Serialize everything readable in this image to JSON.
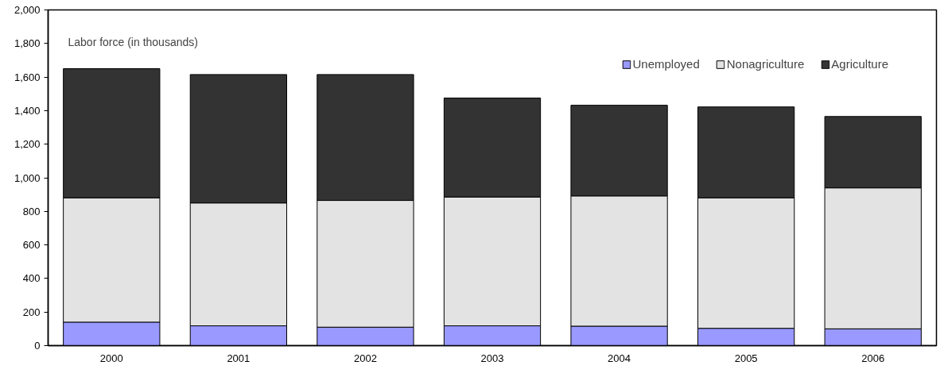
{
  "chart_data": {
    "type": "bar",
    "stacked": true,
    "annotations": [
      "Labor force (in thousands)"
    ],
    "categories": [
      "2000",
      "2001",
      "2002",
      "2003",
      "2004",
      "2005",
      "2006"
    ],
    "series": [
      {
        "name": "Unemployed",
        "color": "#9999ff",
        "values": [
          140,
          118,
          110,
          118,
          116,
          103,
          100
        ]
      },
      {
        "name": "Nonagriculture",
        "color": "#e3e3e3",
        "values": [
          740,
          732,
          755,
          767,
          776,
          777,
          840
        ]
      },
      {
        "name": "Agriculture",
        "color": "#333333",
        "values": [
          770,
          765,
          750,
          590,
          540,
          542,
          425
        ]
      }
    ],
    "ylim": [
      0,
      2000
    ],
    "yticks": [
      {
        "value": 0,
        "label": "0"
      },
      {
        "value": 200,
        "label": "200"
      },
      {
        "value": 400,
        "label": "400"
      },
      {
        "value": 600,
        "label": "600"
      },
      {
        "value": 800,
        "label": "800"
      },
      {
        "value": 1000,
        "label": "1,000"
      },
      {
        "value": 1200,
        "label": "1,200"
      },
      {
        "value": 1400,
        "label": "1,400"
      },
      {
        "value": 1600,
        "label": "1,600"
      },
      {
        "value": 1800,
        "label": "1,800"
      },
      {
        "value": 2000,
        "label": "2,000"
      }
    ],
    "grid": false,
    "legend": "top right"
  }
}
